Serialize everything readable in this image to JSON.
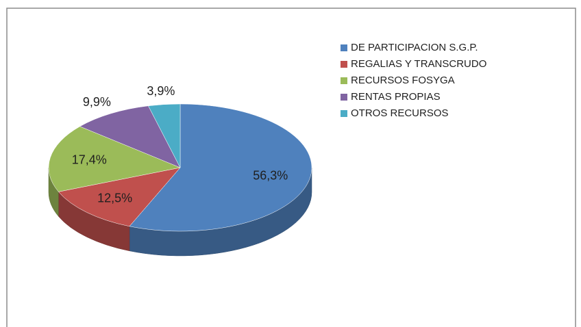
{
  "chart_data": {
    "type": "pie",
    "categories": [
      "DE PARTICIPACION S.G.P.",
      "REGALIAS Y TRANSCRUDO",
      "RECURSOS FOSYGA",
      "RENTAS PROPIAS",
      "OTROS RECURSOS"
    ],
    "values": [
      56.3,
      12.5,
      17.4,
      9.9,
      3.9
    ],
    "value_labels": [
      "56,3%",
      "12,5%",
      "17,4%",
      "9,9%",
      "3,9%"
    ],
    "colors": [
      "#4f81bd",
      "#c0504d",
      "#9bbb59",
      "#8064a2",
      "#4bacc6"
    ],
    "legend": "right"
  }
}
